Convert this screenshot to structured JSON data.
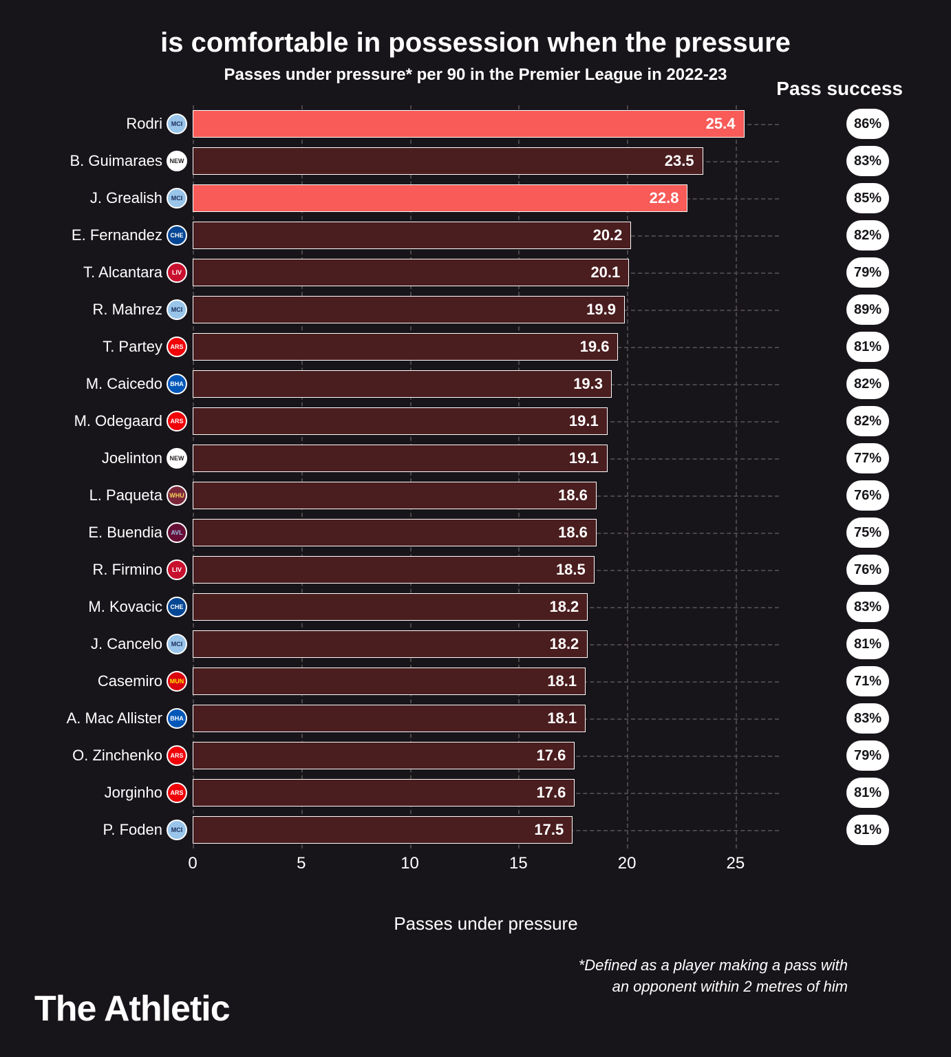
{
  "title": "is comfortable in possession when the pressure",
  "subtitle": "Passes under pressure* per 90 in the Premier League in 2022-23",
  "pass_success_header": "Pass success",
  "x_axis_label": "Passes under pressure",
  "footnote_line1": "*Defined as a player making a pass with",
  "footnote_line2": "an opponent within 2 metres of him",
  "brand": "The Athletic",
  "chart": {
    "type": "bar",
    "xlim": [
      0,
      27
    ],
    "xticks": [
      0,
      5,
      10,
      15,
      20,
      25
    ],
    "grid_color": "#4a4548",
    "background_color": "#18151a",
    "bar_border_color": "#ffffff",
    "highlight_color": "#f85b58",
    "normal_color": "#4a1d1e",
    "label_fontsize": 22,
    "value_fontsize": 22,
    "players": [
      {
        "name": "Rodri",
        "value": 25.4,
        "success": "86%",
        "highlight": true,
        "club": {
          "abbrev": "MCI",
          "bg": "#98c5e9",
          "fg": "#1c2c5b"
        }
      },
      {
        "name": "B. Guimaraes",
        "value": 23.5,
        "success": "83%",
        "highlight": false,
        "club": {
          "abbrev": "NEW",
          "bg": "#ffffff",
          "fg": "#241f20"
        }
      },
      {
        "name": "J. Grealish",
        "value": 22.8,
        "success": "85%",
        "highlight": true,
        "club": {
          "abbrev": "MCI",
          "bg": "#98c5e9",
          "fg": "#1c2c5b"
        }
      },
      {
        "name": "E. Fernandez",
        "value": 20.2,
        "success": "82%",
        "highlight": false,
        "club": {
          "abbrev": "CHE",
          "bg": "#034694",
          "fg": "#ffffff"
        }
      },
      {
        "name": "T. Alcantara",
        "value": 20.1,
        "success": "79%",
        "highlight": false,
        "club": {
          "abbrev": "LIV",
          "bg": "#c8102e",
          "fg": "#ffffff"
        }
      },
      {
        "name": "R. Mahrez",
        "value": 19.9,
        "success": "89%",
        "highlight": false,
        "club": {
          "abbrev": "MCI",
          "bg": "#98c5e9",
          "fg": "#1c2c5b"
        }
      },
      {
        "name": "T. Partey",
        "value": 19.6,
        "success": "81%",
        "highlight": false,
        "club": {
          "abbrev": "ARS",
          "bg": "#ef0107",
          "fg": "#ffffff"
        }
      },
      {
        "name": "M. Caicedo",
        "value": 19.3,
        "success": "82%",
        "highlight": false,
        "club": {
          "abbrev": "BHA",
          "bg": "#0057b8",
          "fg": "#ffffff"
        }
      },
      {
        "name": "M. Odegaard",
        "value": 19.1,
        "success": "82%",
        "highlight": false,
        "club": {
          "abbrev": "ARS",
          "bg": "#ef0107",
          "fg": "#ffffff"
        }
      },
      {
        "name": "Joelinton",
        "value": 19.1,
        "success": "77%",
        "highlight": false,
        "club": {
          "abbrev": "NEW",
          "bg": "#ffffff",
          "fg": "#241f20"
        }
      },
      {
        "name": "L. Paqueta",
        "value": 18.6,
        "success": "76%",
        "highlight": false,
        "club": {
          "abbrev": "WHU",
          "bg": "#7a263a",
          "fg": "#f3d459"
        }
      },
      {
        "name": "E. Buendia",
        "value": 18.6,
        "success": "75%",
        "highlight": false,
        "club": {
          "abbrev": "AVL",
          "bg": "#670e36",
          "fg": "#95bfe5"
        }
      },
      {
        "name": "R. Firmino",
        "value": 18.5,
        "success": "76%",
        "highlight": false,
        "club": {
          "abbrev": "LIV",
          "bg": "#c8102e",
          "fg": "#ffffff"
        }
      },
      {
        "name": "M. Kovacic",
        "value": 18.2,
        "success": "83%",
        "highlight": false,
        "club": {
          "abbrev": "CHE",
          "bg": "#034694",
          "fg": "#ffffff"
        }
      },
      {
        "name": "J. Cancelo",
        "value": 18.2,
        "success": "81%",
        "highlight": false,
        "club": {
          "abbrev": "MCI",
          "bg": "#98c5e9",
          "fg": "#1c2c5b"
        }
      },
      {
        "name": "Casemiro",
        "value": 18.1,
        "success": "71%",
        "highlight": false,
        "club": {
          "abbrev": "MUN",
          "bg": "#da020e",
          "fg": "#ffe500"
        }
      },
      {
        "name": "A. Mac Allister",
        "value": 18.1,
        "success": "83%",
        "highlight": false,
        "club": {
          "abbrev": "BHA",
          "bg": "#0057b8",
          "fg": "#ffffff"
        }
      },
      {
        "name": "O. Zinchenko",
        "value": 17.6,
        "success": "79%",
        "highlight": false,
        "club": {
          "abbrev": "ARS",
          "bg": "#ef0107",
          "fg": "#ffffff"
        }
      },
      {
        "name": "Jorginho",
        "value": 17.6,
        "success": "81%",
        "highlight": false,
        "club": {
          "abbrev": "ARS",
          "bg": "#ef0107",
          "fg": "#ffffff"
        }
      },
      {
        "name": "P. Foden",
        "value": 17.5,
        "success": "81%",
        "highlight": false,
        "club": {
          "abbrev": "MCI",
          "bg": "#98c5e9",
          "fg": "#1c2c5b"
        }
      }
    ]
  }
}
